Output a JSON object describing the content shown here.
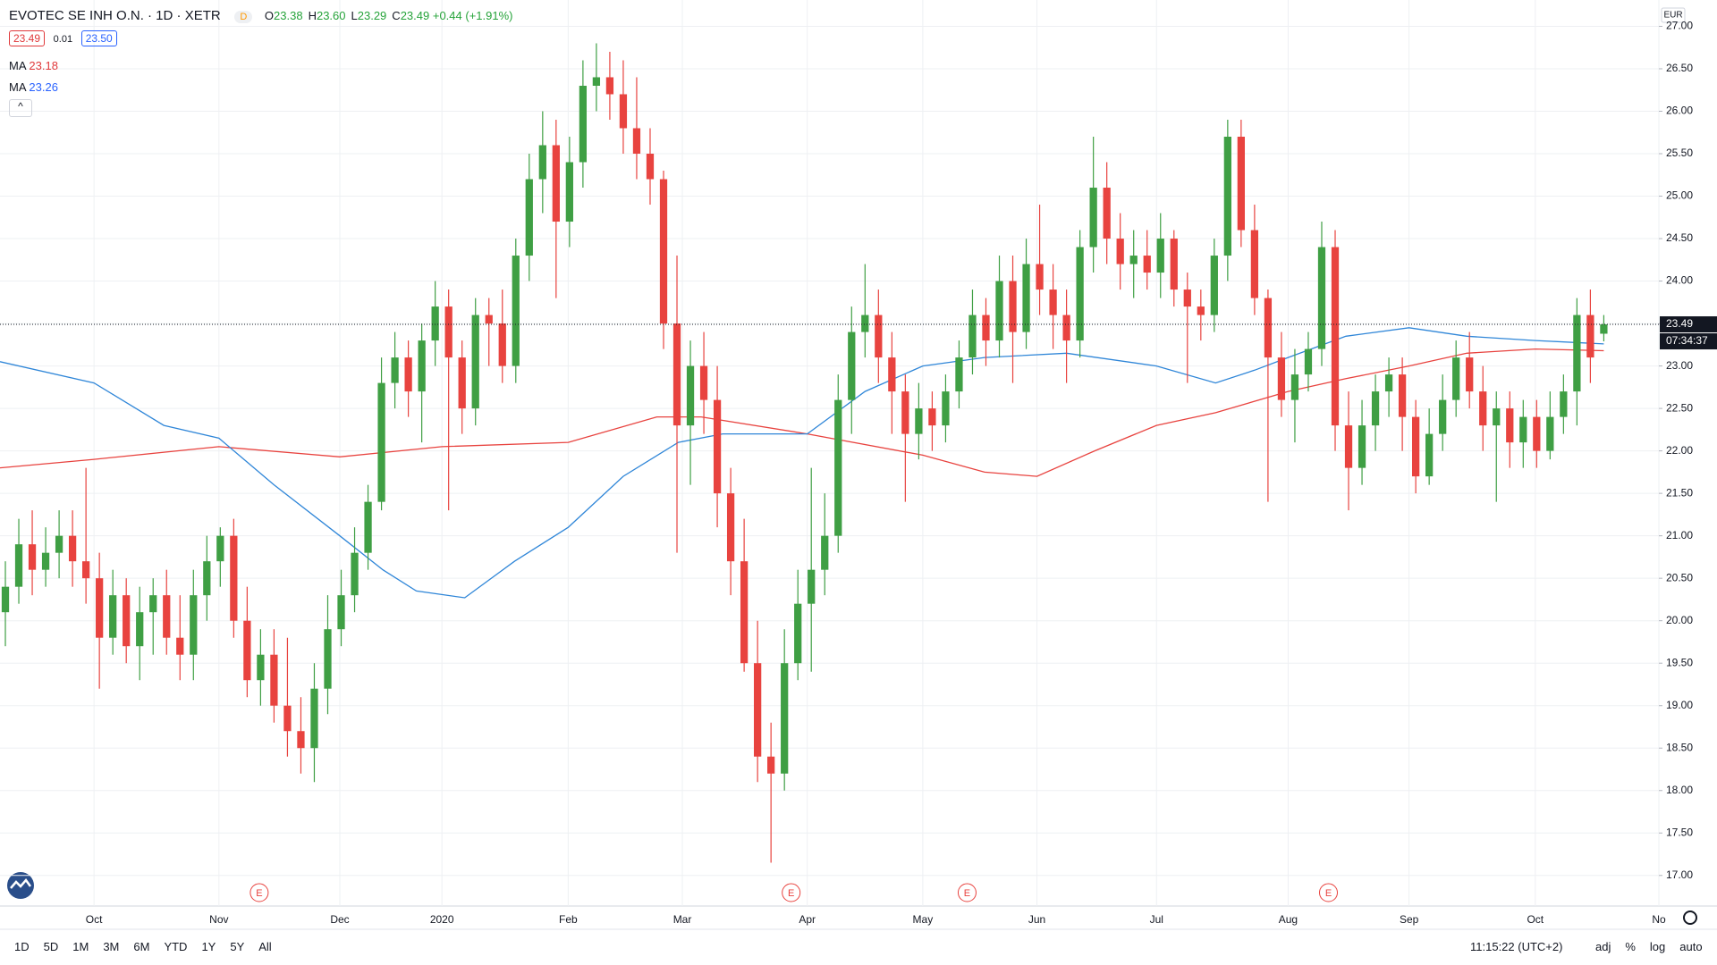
{
  "header": {
    "title": "EVOTEC SE INH O.N. · 1D · XETR",
    "badge": "D",
    "ohlc": [
      {
        "label": "O",
        "value": "23.38"
      },
      {
        "label": "H",
        "value": "23.60"
      },
      {
        "label": "L",
        "value": "23.29"
      },
      {
        "label": "C",
        "value": "23.49"
      }
    ],
    "change": "+0.44 (+1.91%)"
  },
  "bid_ask": {
    "bid": "23.49",
    "spread": "0.01",
    "ask": "23.50"
  },
  "toolbar": {
    "ranges": [
      "1D",
      "5D",
      "1M",
      "3M",
      "6M",
      "YTD",
      "1Y",
      "5Y",
      "All"
    ],
    "time": "11:15:22 (UTC+2)",
    "options": [
      "adj",
      "%",
      "log",
      "auto"
    ]
  },
  "chart_data": {
    "type": "candlestick",
    "up_color": "#3f9f44",
    "down_color": "#e8433f",
    "grid": true,
    "currency": "EUR",
    "price_label": "23.49",
    "countdown": "07:34:37",
    "open": [
      20.1,
      20.4,
      20.9,
      20.6,
      20.8,
      21.0,
      20.7,
      20.5,
      19.8,
      20.3,
      19.7,
      20.1,
      20.3,
      19.8,
      19.6,
      20.3,
      20.7,
      21.0,
      20.0,
      19.3,
      19.6,
      19.0,
      18.7,
      18.5,
      19.2,
      19.9,
      20.3,
      20.8,
      21.4,
      22.8,
      23.1,
      22.7,
      23.3,
      23.7,
      23.1,
      22.5,
      23.6,
      23.5,
      23.0,
      24.3,
      25.2,
      25.6,
      24.7,
      25.4,
      26.3,
      26.4,
      26.2,
      25.8,
      25.5,
      25.2,
      23.5,
      22.3,
      23.0,
      22.6,
      21.5,
      20.7,
      19.5,
      18.4,
      18.2,
      19.5,
      20.2,
      20.6,
      21.0,
      22.6,
      23.4,
      23.6,
      23.1,
      22.7,
      22.2,
      22.5,
      22.3,
      22.7,
      23.1,
      23.6,
      23.3,
      24.0,
      23.4,
      24.2,
      23.9,
      23.6,
      23.3,
      24.4,
      25.1,
      24.5,
      24.2,
      24.3,
      24.1,
      24.5,
      23.9,
      23.7,
      23.6,
      24.3,
      25.7,
      24.6,
      23.8,
      23.1,
      22.6,
      22.9,
      23.2,
      24.4,
      22.3,
      21.8,
      22.3,
      22.7,
      22.9,
      22.4,
      21.7,
      22.2,
      22.6,
      23.1,
      22.7,
      22.3,
      22.5,
      22.1,
      22.4,
      22.0,
      22.4,
      22.7,
      23.6,
      23.38
    ],
    "high": [
      20.7,
      21.2,
      21.3,
      21.1,
      21.3,
      21.3,
      21.8,
      20.8,
      20.6,
      20.5,
      20.4,
      20.5,
      20.6,
      20.3,
      20.6,
      21.0,
      21.1,
      21.2,
      20.4,
      19.9,
      19.9,
      19.8,
      19.1,
      19.5,
      20.3,
      20.6,
      21.1,
      21.6,
      23.1,
      23.4,
      23.3,
      23.5,
      24.0,
      23.9,
      23.3,
      23.8,
      23.8,
      23.9,
      24.5,
      25.5,
      26.0,
      25.9,
      25.7,
      26.6,
      26.8,
      26.7,
      26.6,
      26.4,
      25.8,
      25.3,
      24.3,
      23.3,
      23.4,
      23.0,
      21.8,
      21.2,
      20.0,
      18.8,
      19.9,
      20.6,
      21.8,
      21.5,
      22.9,
      23.7,
      24.2,
      23.9,
      23.4,
      22.9,
      22.8,
      22.7,
      22.9,
      23.3,
      23.9,
      23.8,
      24.3,
      24.3,
      24.5,
      24.9,
      24.2,
      23.9,
      24.6,
      25.7,
      25.4,
      24.8,
      24.6,
      24.6,
      24.8,
      24.6,
      24.1,
      23.9,
      24.5,
      25.9,
      25.9,
      24.9,
      23.9,
      23.4,
      23.2,
      23.4,
      24.7,
      24.6,
      22.7,
      22.6,
      22.9,
      23.1,
      23.1,
      22.6,
      22.5,
      22.9,
      23.3,
      23.4,
      23.0,
      22.7,
      22.7,
      22.6,
      22.6,
      22.7,
      22.9,
      23.8,
      23.9,
      23.6
    ],
    "low": [
      19.7,
      20.2,
      20.3,
      20.4,
      20.5,
      20.4,
      20.2,
      19.2,
      19.6,
      19.5,
      19.3,
      19.6,
      19.6,
      19.3,
      19.3,
      20.0,
      20.4,
      19.8,
      19.1,
      19.0,
      18.8,
      18.4,
      18.2,
      18.1,
      18.9,
      19.7,
      20.1,
      20.6,
      21.3,
      22.5,
      22.4,
      22.1,
      23.0,
      21.3,
      22.2,
      22.3,
      23.0,
      22.8,
      22.8,
      24.0,
      24.8,
      23.8,
      24.4,
      25.1,
      26.0,
      25.9,
      25.5,
      25.2,
      24.9,
      23.2,
      20.8,
      21.6,
      22.2,
      21.1,
      20.3,
      19.4,
      18.1,
      17.15,
      18.0,
      19.3,
      19.4,
      20.3,
      20.8,
      22.2,
      23.1,
      22.8,
      22.2,
      21.4,
      21.9,
      22.0,
      22.1,
      22.5,
      22.9,
      23.0,
      23.1,
      22.8,
      23.2,
      23.6,
      23.2,
      22.8,
      23.1,
      24.1,
      24.2,
      23.9,
      23.8,
      23.9,
      23.8,
      23.7,
      22.8,
      23.3,
      23.4,
      24.0,
      24.4,
      23.6,
      21.4,
      22.4,
      22.1,
      22.7,
      23.0,
      22.0,
      21.3,
      21.6,
      22.0,
      22.4,
      22.0,
      21.5,
      21.6,
      22.0,
      22.4,
      22.5,
      22.0,
      21.4,
      21.8,
      21.8,
      21.8,
      21.9,
      22.2,
      22.3,
      22.8,
      23.29
    ],
    "close": [
      20.4,
      20.9,
      20.6,
      20.8,
      21.0,
      20.7,
      20.5,
      19.8,
      20.3,
      19.7,
      20.1,
      20.3,
      19.8,
      19.6,
      20.3,
      20.7,
      21.0,
      20.0,
      19.3,
      19.6,
      19.0,
      18.7,
      18.5,
      19.2,
      19.9,
      20.3,
      20.8,
      21.4,
      22.8,
      23.1,
      22.7,
      23.3,
      23.7,
      23.1,
      22.5,
      23.6,
      23.5,
      23.0,
      24.3,
      25.2,
      25.6,
      24.7,
      25.4,
      26.3,
      26.4,
      26.2,
      25.8,
      25.5,
      25.2,
      23.5,
      22.3,
      23.0,
      22.6,
      21.5,
      20.7,
      19.5,
      18.4,
      18.2,
      19.5,
      20.2,
      20.6,
      21.0,
      22.6,
      23.4,
      23.6,
      23.1,
      22.7,
      22.2,
      22.5,
      22.3,
      22.7,
      23.1,
      23.6,
      23.3,
      24.0,
      23.4,
      24.2,
      23.9,
      23.6,
      23.3,
      24.4,
      25.1,
      24.5,
      24.2,
      24.3,
      24.1,
      24.5,
      23.9,
      23.7,
      23.6,
      24.3,
      25.7,
      24.6,
      23.8,
      23.1,
      22.6,
      22.9,
      23.2,
      24.4,
      22.3,
      21.8,
      22.3,
      22.7,
      22.9,
      22.4,
      21.7,
      22.2,
      22.6,
      23.1,
      22.7,
      22.3,
      22.5,
      22.1,
      22.4,
      22.0,
      22.4,
      22.7,
      23.6,
      23.1,
      23.49
    ],
    "series": [
      {
        "name": "MA",
        "value_label": "23.18",
        "color": "#e8433f",
        "x": [
          -0.4,
          6.6,
          15.9,
          24.9,
          32.5,
          41.9,
          48.5,
          51.8,
          59.7,
          68.3,
          72.9,
          76.8,
          81.1,
          85.7,
          90.1,
          95.5,
          99.8,
          104.5,
          108.8,
          113.9,
          119
        ],
        "values": [
          21.8,
          21.9,
          22.05,
          21.93,
          22.05,
          22.1,
          22.4,
          22.4,
          22.2,
          21.95,
          21.75,
          21.7,
          22.0,
          22.3,
          22.45,
          22.7,
          22.85,
          23.0,
          23.15,
          23.2,
          23.18
        ]
      },
      {
        "name": "MA",
        "value_label": "23.26",
        "color": "#2f86d8",
        "x": [
          -0.4,
          6.6,
          11.8,
          15.9,
          20,
          24.9,
          28.1,
          30.6,
          34.2,
          37.9,
          41.9,
          46,
          50.1,
          53.4,
          59.7,
          64,
          68.3,
          72.9,
          79,
          85.7,
          90.1,
          93,
          95.5,
          99.8,
          104.5,
          108.8,
          113.9,
          119
        ],
        "values": [
          23.05,
          22.8,
          22.3,
          22.15,
          21.6,
          21.0,
          20.6,
          20.35,
          20.27,
          20.7,
          21.1,
          21.7,
          22.1,
          22.2,
          22.2,
          22.7,
          23.0,
          23.1,
          23.15,
          23.0,
          22.8,
          22.95,
          23.1,
          23.35,
          23.45,
          23.35,
          23.3,
          23.26
        ]
      }
    ],
    "events": [
      {
        "x": 18.9,
        "label": "E"
      },
      {
        "x": 58.5,
        "label": "E"
      },
      {
        "x": 71.6,
        "label": "E"
      },
      {
        "x": 98.5,
        "label": "E"
      }
    ],
    "xlim": [
      -0.4,
      123.1
    ],
    "xticks": [
      {
        "value": 6.6,
        "label": "Oct"
      },
      {
        "value": 15.9,
        "label": "Nov"
      },
      {
        "value": 24.9,
        "label": "Dec"
      },
      {
        "value": 32.5,
        "label": "2020"
      },
      {
        "value": 41.9,
        "label": "Feb"
      },
      {
        "value": 50.4,
        "label": "Mar"
      },
      {
        "value": 59.7,
        "label": "Apr"
      },
      {
        "value": 68.3,
        "label": "May"
      },
      {
        "value": 76.8,
        "label": "Jun"
      },
      {
        "value": 85.7,
        "label": "Jul"
      },
      {
        "value": 95.5,
        "label": "Aug"
      },
      {
        "value": 104.5,
        "label": "Sep"
      },
      {
        "value": 113.9,
        "label": "Oct"
      },
      {
        "value": 123.1,
        "label": "No"
      }
    ],
    "ylim": [
      16.64,
      27.31
    ],
    "yticks": [
      {
        "value": 17,
        "label": "17.00"
      },
      {
        "value": 17.5,
        "label": "17.50"
      },
      {
        "value": 18,
        "label": "18.00"
      },
      {
        "value": 18.5,
        "label": "18.50"
      },
      {
        "value": 19,
        "label": "19.00"
      },
      {
        "value": 19.5,
        "label": "19.50"
      },
      {
        "value": 20,
        "label": "20.00"
      },
      {
        "value": 20.5,
        "label": "20.50"
      },
      {
        "value": 21,
        "label": "21.00"
      },
      {
        "value": 21.5,
        "label": "21.50"
      },
      {
        "value": 22,
        "label": "22.00"
      },
      {
        "value": 22.5,
        "label": "22.50"
      },
      {
        "value": 23,
        "label": "23.00"
      },
      {
        "value": 23.5,
        "label": "23.50"
      },
      {
        "value": 24,
        "label": "24.00"
      },
      {
        "value": 24.5,
        "label": "24.50"
      },
      {
        "value": 25,
        "label": "25.00"
      },
      {
        "value": 25.5,
        "label": "25.50"
      },
      {
        "value": 26,
        "label": "26.00"
      },
      {
        "value": 26.5,
        "label": "26.50"
      },
      {
        "value": 27,
        "label": "27.00"
      }
    ]
  }
}
